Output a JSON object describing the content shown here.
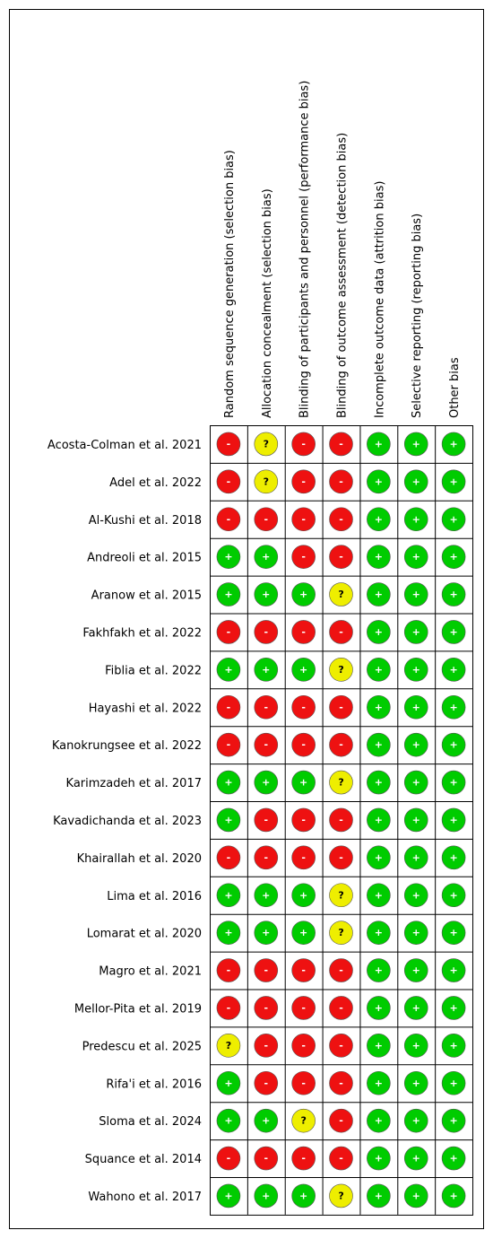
{
  "columns": [
    "Random sequence generation (selection bias)",
    "Allocation concealment (selection bias)",
    "Blinding of participants and personnel (performance bias)",
    "Blinding of outcome assessment (detection bias)",
    "Incomplete outcome data (attrition bias)",
    "Selective reporting (reporting bias)",
    "Other bias"
  ],
  "judgment_colors": {
    "+": "#00cc00",
    "-": "#ee1111",
    "?": "#eeee00"
  },
  "rows": [
    {
      "study": "Acosta-Colman et al. 2021",
      "judgments": [
        "-",
        "?",
        "-",
        "-",
        "+",
        "+",
        "+"
      ]
    },
    {
      "study": "Adel et al. 2022",
      "judgments": [
        "-",
        "?",
        "-",
        "-",
        "+",
        "+",
        "+"
      ]
    },
    {
      "study": "Al-Kushi et al. 2018",
      "judgments": [
        "-",
        "-",
        "-",
        "-",
        "+",
        "+",
        "+"
      ]
    },
    {
      "study": "Andreoli et al. 2015",
      "judgments": [
        "+",
        "+",
        "-",
        "-",
        "+",
        "+",
        "+"
      ]
    },
    {
      "study": "Aranow et al. 2015",
      "judgments": [
        "+",
        "+",
        "+",
        "?",
        "+",
        "+",
        "+"
      ]
    },
    {
      "study": "Fakhfakh et al. 2022",
      "judgments": [
        "-",
        "-",
        "-",
        "-",
        "+",
        "+",
        "+"
      ]
    },
    {
      "study": "Fiblia et al. 2022",
      "judgments": [
        "+",
        "+",
        "+",
        "?",
        "+",
        "+",
        "+"
      ]
    },
    {
      "study": "Hayashi et al. 2022",
      "judgments": [
        "-",
        "-",
        "-",
        "-",
        "+",
        "+",
        "+"
      ]
    },
    {
      "study": "Kanokrungsee et al. 2022",
      "judgments": [
        "-",
        "-",
        "-",
        "-",
        "+",
        "+",
        "+"
      ]
    },
    {
      "study": "Karimzadeh et al. 2017",
      "judgments": [
        "+",
        "+",
        "+",
        "?",
        "+",
        "+",
        "+"
      ]
    },
    {
      "study": "Kavadichanda et al. 2023",
      "judgments": [
        "+",
        "-",
        "-",
        "-",
        "+",
        "+",
        "+"
      ]
    },
    {
      "study": "Khairallah et al. 2020",
      "judgments": [
        "-",
        "-",
        "-",
        "-",
        "+",
        "+",
        "+"
      ]
    },
    {
      "study": "Lima et al. 2016",
      "judgments": [
        "+",
        "+",
        "+",
        "?",
        "+",
        "+",
        "+"
      ]
    },
    {
      "study": "Lomarat et al. 2020",
      "judgments": [
        "+",
        "+",
        "+",
        "?",
        "+",
        "+",
        "+"
      ]
    },
    {
      "study": "Magro et al. 2021",
      "judgments": [
        "-",
        "-",
        "-",
        "-",
        "+",
        "+",
        "+"
      ]
    },
    {
      "study": "Mellor-Pita et al. 2019",
      "judgments": [
        "-",
        "-",
        "-",
        "-",
        "+",
        "+",
        "+"
      ]
    },
    {
      "study": "Predescu et al. 2025",
      "judgments": [
        "?",
        "-",
        "-",
        "-",
        "+",
        "+",
        "+"
      ]
    },
    {
      "study": "Rifa'i et al. 2016",
      "judgments": [
        "+",
        "-",
        "-",
        "-",
        "+",
        "+",
        "+"
      ]
    },
    {
      "study": "Sloma et al. 2024",
      "judgments": [
        "+",
        "+",
        "?",
        "-",
        "+",
        "+",
        "+"
      ]
    },
    {
      "study": "Squance et al. 2014",
      "judgments": [
        "-",
        "-",
        "-",
        "-",
        "+",
        "+",
        "+"
      ]
    },
    {
      "study": "Wahono et al. 2017",
      "judgments": [
        "+",
        "+",
        "+",
        "?",
        "+",
        "+",
        "+"
      ]
    }
  ]
}
